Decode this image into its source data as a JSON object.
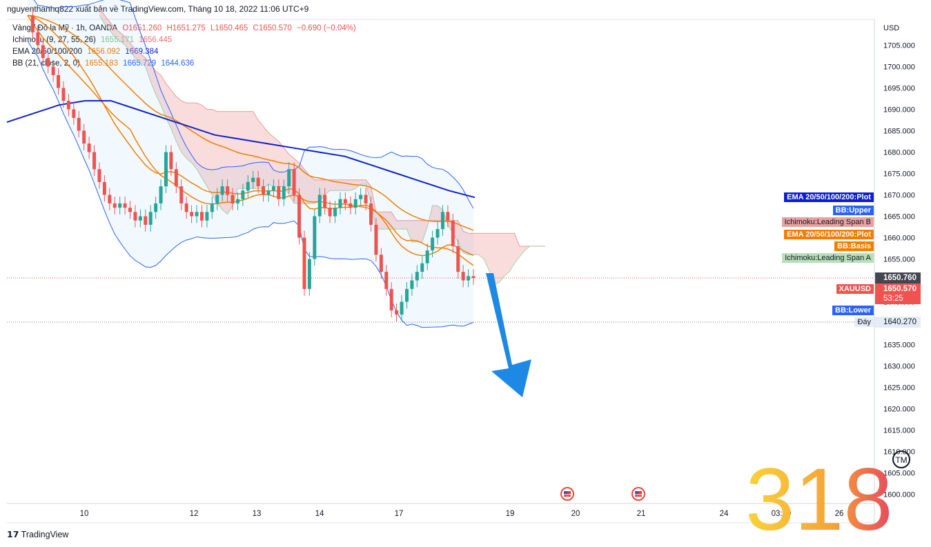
{
  "header_line": "nguyenthanhq822 xuất bản về TradingView.com, Tháng 10 18, 2022 11:06 UTC+9",
  "legend": {
    "main": {
      "label": "Vàng / Đô la Mỹ · 1h, OANDA",
      "o": "O1651.260",
      "h": "H1651.275",
      "l": "L1650.465",
      "c": "C1650.570",
      "chg": "−0.690 (−0.04%)"
    },
    "ichimoku": {
      "label": "Ichimoku (9, 27, 55, 26)",
      "v1": "1655.171",
      "v2": "1656.445"
    },
    "ema": {
      "label": "EMA 20/50/100/200",
      "v1": "1656.092",
      "v2": "1669.384"
    },
    "bb": {
      "label": "BB (21, close, 2, 0)",
      "v1": "1655.183",
      "v2": "1665.729",
      "v3": "1644.636"
    }
  },
  "colors": {
    "up": "#26a69a",
    "down": "#ef5350",
    "ema200": "#0e1ecf",
    "ema_orange": "#f57c00",
    "bb": "#2962ff",
    "span_a": "#a5d6a7",
    "span_b": "#ef9a9a",
    "arrow": "#1e88e5"
  },
  "price_axis": {
    "currency": "USD",
    "ticks": [
      "1705.000",
      "1700.000",
      "1695.000",
      "1690.000",
      "1685.000",
      "1680.000",
      "1675.000",
      "1670.000",
      "1665.000",
      "1660.000",
      "1655.000",
      "1650.000",
      "1645.000",
      "1640.000",
      "1635.000",
      "1630.000",
      "1625.000",
      "1620.000",
      "1615.000",
      "1610.000",
      "1605.000",
      "1600.000"
    ]
  },
  "time_axis": [
    "10",
    "12",
    "13",
    "14",
    "17",
    "19",
    "20",
    "21",
    "24",
    "03:00",
    "26"
  ],
  "tags": {
    "ema_plot_blue": "EMA 20/50/100/200:Plot",
    "bb_upper": "BB:Upper",
    "ichi_span_b": "Ichimoku:Leading Span B",
    "ema_plot_orange": "EMA 20/50/100/200:Plot",
    "bb_basis": "BB:Basis",
    "ichi_span_a": "Ichimoku:Leading Span A",
    "symbol": "XAUUSD",
    "bb_lower": "BB:Lower",
    "bottom": "Đáy"
  },
  "prices": {
    "dark_line": "1650.760",
    "last": "1650.570",
    "countdown": "53:25",
    "bottom_level": "1640.270"
  },
  "footer": {
    "brand": "TradingView"
  },
  "watermark": "318",
  "chart_data": {
    "type": "candlestick",
    "symbol": "XAUUSD",
    "timeframe": "1h",
    "ylim": [
      1598,
      1710
    ],
    "close_series": [
      1712,
      1708,
      1705,
      1702,
      1700,
      1698,
      1695,
      1692,
      1690,
      1688,
      1685,
      1682,
      1680,
      1676,
      1673,
      1670,
      1668,
      1667,
      1668,
      1667,
      1666,
      1664,
      1665,
      1663,
      1666,
      1668,
      1672,
      1680,
      1676,
      1672,
      1668,
      1666,
      1665,
      1666,
      1664,
      1666,
      1668,
      1670,
      1672,
      1670,
      1668,
      1669,
      1671,
      1673,
      1674,
      1672,
      1670,
      1671,
      1672,
      1669,
      1672,
      1676,
      1670,
      1660,
      1648,
      1655,
      1665,
      1670,
      1667,
      1665,
      1667,
      1669,
      1668,
      1667,
      1669,
      1670,
      1668,
      1663,
      1656,
      1652,
      1648,
      1643,
      1642,
      1645,
      1648,
      1650,
      1652,
      1654,
      1657,
      1660,
      1662,
      1666,
      1664,
      1658,
      1652,
      1650,
      1651,
      1650.57
    ],
    "ema200": [
      1687,
      1689,
      1691,
      1692,
      1692,
      1690,
      1688,
      1686,
      1684,
      1683,
      1682,
      1681,
      1680,
      1679,
      1677,
      1675,
      1673,
      1671,
      1669.4
    ],
    "bottom_level": 1640.27,
    "last": 1650.57
  }
}
